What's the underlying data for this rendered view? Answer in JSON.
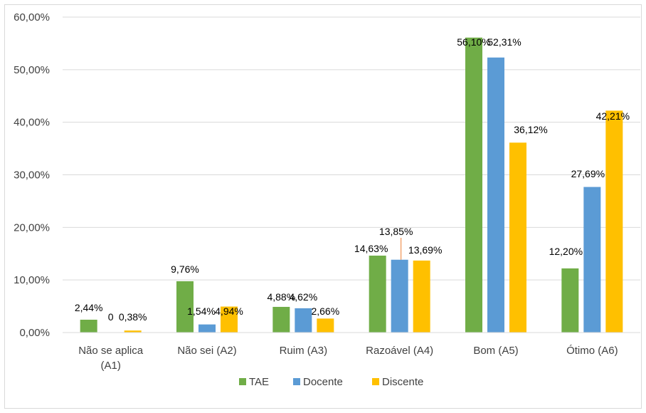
{
  "chart_data": {
    "type": "bar",
    "title": "",
    "xlabel": "",
    "ylabel": "",
    "categories": [
      [
        "Não se aplica",
        "(A1)"
      ],
      [
        "Não sei (A2)"
      ],
      [
        "Ruim (A3)"
      ],
      [
        "Razoável (A4)"
      ],
      [
        "Bom (A5)"
      ],
      [
        "Ótimo (A6)"
      ]
    ],
    "ylim": [
      0,
      60
    ],
    "yticks": [
      0,
      10,
      20,
      30,
      40,
      50,
      60
    ],
    "ytick_labels": [
      "0,00%",
      "10,00%",
      "20,00%",
      "30,00%",
      "40,00%",
      "50,00%",
      "60,00%"
    ],
    "grid": true,
    "legend_position": "bottom",
    "series": [
      {
        "name": "TAE",
        "color": "#70ad47",
        "values": [
          2.44,
          9.76,
          4.88,
          14.63,
          56.1,
          12.2
        ],
        "labels": [
          "2,44%",
          "9,76%",
          "4,88%",
          "14,63%",
          "56,10%",
          "12,20%"
        ]
      },
      {
        "name": "Docente",
        "color": "#5b9bd5",
        "values": [
          0,
          1.54,
          4.62,
          13.85,
          52.31,
          27.69
        ],
        "labels": [
          "0",
          "1,54%",
          "4,62%",
          "13,85%",
          "52,31%",
          "27,69%"
        ]
      },
      {
        "name": "Discente",
        "color": "#ffc000",
        "values": [
          0.38,
          4.94,
          2.66,
          13.69,
          36.12,
          42.21
        ],
        "labels": [
          "0,38%",
          "4,94%",
          "2,66%",
          "13,69%",
          "36,12%",
          "42,21%"
        ]
      }
    ]
  }
}
